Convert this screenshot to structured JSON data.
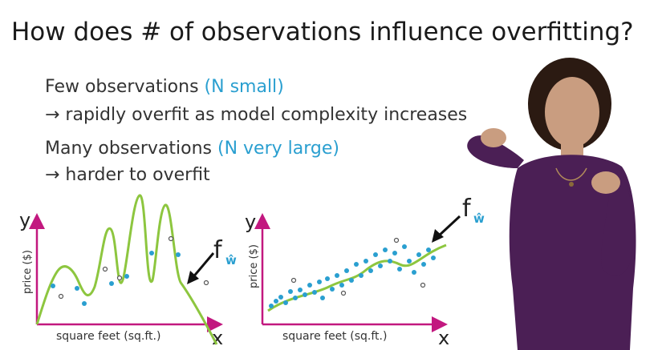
{
  "slide": {
    "title": "How does # of observations influence overfitting?",
    "points": [
      {
        "lead": "Few observations",
        "paren_open": " (",
        "accent": "N small",
        "paren_close": ")"
      },
      {
        "lead": "Many observations",
        "paren_open": " (",
        "accent": "N very large",
        "paren_close": ")"
      }
    ],
    "subpoints": [
      {
        "arrow": "→",
        "text": " rapidly overfit as model complexity increases"
      },
      {
        "arrow": "→",
        "text": " harder to overfit"
      }
    ],
    "plots": [
      {
        "y_axis": "y",
        "y_label": "price ($)",
        "x_axis": "x",
        "x_label": "square feet (sq.ft.)",
        "fit_label": "f",
        "fit_subscript": "ŵ"
      },
      {
        "y_axis": "y",
        "y_label": "price ($)",
        "x_axis": "x",
        "x_label": "square feet (sq.ft.)",
        "fit_label": "f",
        "fit_subscript": "ŵ"
      }
    ]
  },
  "colors": {
    "axis": "#c2187f",
    "fit_curve": "#8dc63f",
    "points_blue": "#2a9fd0",
    "points_outline": "#555555",
    "accent": "#2a9fd0",
    "presenter_shirt": "#4b1f55",
    "presenter_hair": "#2b1a12",
    "presenter_skin": "#c99d80"
  }
}
